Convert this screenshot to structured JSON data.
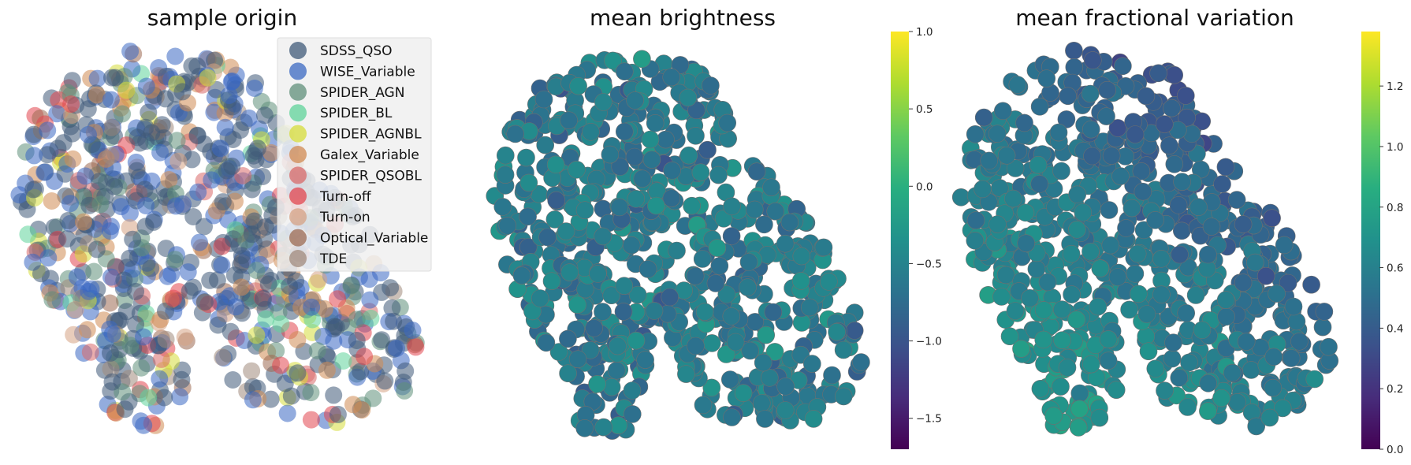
{
  "chart_data": [
    {
      "type": "scatter",
      "title": "sample origin",
      "xlabel": "",
      "ylabel": "",
      "axes_visible": false,
      "encoding": "categorical",
      "legend_position": "top-right",
      "legend": [
        {
          "name": "SDSS_QSO",
          "color": "#3f5a78"
        },
        {
          "name": "WISE_Variable",
          "color": "#3a68c2"
        },
        {
          "name": "SPIDER_AGN",
          "color": "#5f8f7a"
        },
        {
          "name": "SPIDER_BL",
          "color": "#5fd39a"
        },
        {
          "name": "SPIDER_AGNBL",
          "color": "#d6dc3a"
        },
        {
          "name": "Galex_Variable",
          "color": "#d08a52"
        },
        {
          "name": "SPIDER_QSOBL",
          "color": "#d86a6a"
        },
        {
          "name": "Turn-off",
          "color": "#e2454f"
        },
        {
          "name": "Turn-on",
          "color": "#d6a284"
        },
        {
          "name": "Optical_Variable",
          "color": "#9c6a52"
        },
        {
          "name": "TDE",
          "color": "#a08a7c"
        }
      ]
    },
    {
      "type": "scatter",
      "title": "mean brightness",
      "xlabel": "",
      "ylabel": "",
      "axes_visible": false,
      "encoding": "continuous",
      "colormap": "viridis",
      "colorbar": {
        "min": -1.7,
        "max": 1.0,
        "ticks": [
          "1.0",
          "0.5",
          "0.0",
          "−0.5",
          "−1.0",
          "−1.5"
        ],
        "tick_values": [
          1.0,
          0.5,
          0.0,
          -0.5,
          -1.0,
          -1.5
        ]
      }
    },
    {
      "type": "scatter",
      "title": "mean fractional variation",
      "xlabel": "",
      "ylabel": "",
      "axes_visible": false,
      "encoding": "continuous",
      "colormap": "viridis",
      "colorbar": {
        "min": 0.0,
        "max": 1.38,
        "ticks": [
          "1.2",
          "1.0",
          "0.8",
          "0.6",
          "0.4",
          "0.2",
          "0.0"
        ],
        "tick_values": [
          1.2,
          1.0,
          0.8,
          0.6,
          0.4,
          0.2,
          0.0
        ]
      }
    }
  ]
}
